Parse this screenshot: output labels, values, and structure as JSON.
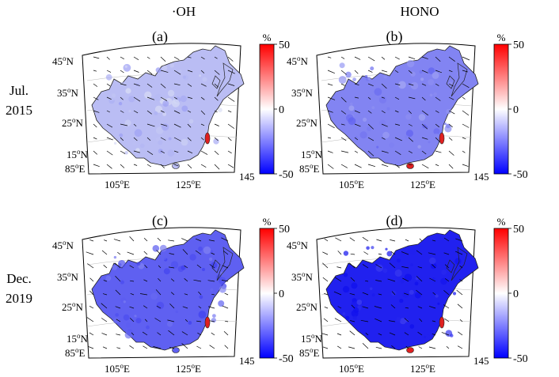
{
  "columns": [
    {
      "label": "·OH"
    },
    {
      "label": "HONO"
    }
  ],
  "rows": [
    {
      "label_line1": "Jul.",
      "label_line2": "2015"
    },
    {
      "label_line1": "Dec.",
      "label_line2": "2019"
    }
  ],
  "panels": [
    {
      "id": "a",
      "tag": "(a)",
      "col": 0,
      "row": 0,
      "intensity": 0.18
    },
    {
      "id": "b",
      "tag": "(b)",
      "col": 1,
      "row": 0,
      "intensity": 0.45
    },
    {
      "id": "c",
      "tag": "(c)",
      "col": 0,
      "row": 1,
      "intensity": 0.62
    },
    {
      "id": "d",
      "tag": "(d)",
      "col": 1,
      "row": 1,
      "intensity": 0.92
    }
  ],
  "lat_labels": [
    {
      "deg": "45",
      "hemi": "N"
    },
    {
      "deg": "35",
      "hemi": "N"
    },
    {
      "deg": "25",
      "hemi": "N"
    },
    {
      "deg": "15",
      "hemi": "N"
    }
  ],
  "lon_labels": {
    "west": {
      "deg": "85",
      "hemi": "E"
    },
    "mid1": {
      "deg": "105",
      "hemi": "E"
    },
    "mid2": {
      "deg": "125",
      "hemi": "E"
    },
    "east": {
      "deg": "145",
      "hemi": ""
    }
  },
  "colorbar": {
    "unit": "%",
    "ticks": [
      "50",
      "0",
      "-50"
    ],
    "colors": [
      "#ff0000",
      "#ffffff",
      "#0000ff"
    ]
  },
  "colors": {
    "land_low": "#dfe3f5",
    "land_high": "#1010ee",
    "taiwan": "#e02020",
    "frame": "#000000"
  }
}
